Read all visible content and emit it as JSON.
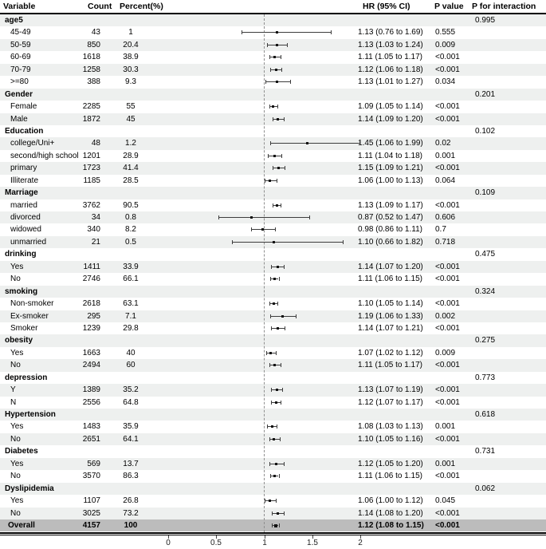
{
  "chart_data": {
    "type": "scatter",
    "subtype": "forest-plot",
    "columns": [
      "Variable",
      "Count",
      "Percent(%)",
      "HR (95% CI)",
      "P value",
      "P for interaction"
    ],
    "axis": {
      "tick_labels": [
        "0",
        "0.5",
        "1",
        "1.5",
        "2"
      ],
      "tick_values": [
        0,
        0.5,
        1,
        1.5,
        2
      ],
      "reference_line": 1,
      "range": [
        0,
        2.35
      ],
      "grid": false
    },
    "rows": [
      {
        "type": "group",
        "label": "age5",
        "p_interaction": "0.995"
      },
      {
        "type": "item",
        "label": "45-49",
        "count": "43",
        "percent": "1",
        "hr_ci": "1.13 (0.76 to 1.69)",
        "p": "0.555",
        "hr": 1.13,
        "lo": 0.76,
        "hi": 1.69
      },
      {
        "type": "item",
        "label": "50-59",
        "count": "850",
        "percent": "20.4",
        "hr_ci": "1.13 (1.03 to 1.24)",
        "p": "0.009",
        "hr": 1.13,
        "lo": 1.03,
        "hi": 1.24
      },
      {
        "type": "item",
        "label": "60-69",
        "count": "1618",
        "percent": "38.9",
        "hr_ci": "1.11 (1.05 to 1.17)",
        "p": "<0.001",
        "hr": 1.11,
        "lo": 1.05,
        "hi": 1.17
      },
      {
        "type": "item",
        "label": "70-79",
        "count": "1258",
        "percent": "30.3",
        "hr_ci": "1.12 (1.06 to 1.18)",
        "p": "<0.001",
        "hr": 1.12,
        "lo": 1.06,
        "hi": 1.18
      },
      {
        "type": "item",
        "label": ">=80",
        "count": "388",
        "percent": "9.3",
        "hr_ci": "1.13 (1.01 to 1.27)",
        "p": "0.034",
        "hr": 1.13,
        "lo": 1.01,
        "hi": 1.27
      },
      {
        "type": "group",
        "label": "Gender",
        "p_interaction": "0.201"
      },
      {
        "type": "item",
        "label": "Female",
        "count": "2285",
        "percent": "55",
        "hr_ci": "1.09 (1.05 to 1.14)",
        "p": "<0.001",
        "hr": 1.09,
        "lo": 1.05,
        "hi": 1.14
      },
      {
        "type": "item",
        "label": "Male",
        "count": "1872",
        "percent": "45",
        "hr_ci": "1.14 (1.09 to 1.20)",
        "p": "<0.001",
        "hr": 1.14,
        "lo": 1.09,
        "hi": 1.2
      },
      {
        "type": "group",
        "label": "Education",
        "p_interaction": "0.102"
      },
      {
        "type": "item",
        "label": "college/Uni+",
        "count": "48",
        "percent": "1.2",
        "hr_ci": "1.45 (1.06 to 1.99)",
        "p": "0.02",
        "hr": 1.45,
        "lo": 1.06,
        "hi": 1.99
      },
      {
        "type": "item",
        "label": "second/high school",
        "count": "1201",
        "percent": "28.9",
        "hr_ci": "1.11 (1.04 to 1.18)",
        "p": "0.001",
        "hr": 1.11,
        "lo": 1.04,
        "hi": 1.18
      },
      {
        "type": "item",
        "label": "primary",
        "count": "1723",
        "percent": "41.4",
        "hr_ci": "1.15 (1.09 to 1.21)",
        "p": "<0.001",
        "hr": 1.15,
        "lo": 1.09,
        "hi": 1.21
      },
      {
        "type": "item",
        "label": "Illiterate",
        "count": "1185",
        "percent": "28.5",
        "hr_ci": "1.06 (1.00 to 1.13)",
        "p": "0.064",
        "hr": 1.06,
        "lo": 1.0,
        "hi": 1.13
      },
      {
        "type": "group",
        "label": "Marriage",
        "p_interaction": "0.109"
      },
      {
        "type": "item",
        "label": "married",
        "count": "3762",
        "percent": "90.5",
        "hr_ci": "1.13 (1.09 to 1.17)",
        "p": "<0.001",
        "hr": 1.13,
        "lo": 1.09,
        "hi": 1.17
      },
      {
        "type": "item",
        "label": "divorced",
        "count": "34",
        "percent": "0.8",
        "hr_ci": "0.87 (0.52 to 1.47)",
        "p": "0.606",
        "hr": 0.87,
        "lo": 0.52,
        "hi": 1.47
      },
      {
        "type": "item",
        "label": "widowed",
        "count": "340",
        "percent": "8.2",
        "hr_ci": "0.98 (0.86 to 1.11)",
        "p": "0.7",
        "hr": 0.98,
        "lo": 0.86,
        "hi": 1.11
      },
      {
        "type": "item",
        "label": "unmarried",
        "count": "21",
        "percent": "0.5",
        "hr_ci": "1.10 (0.66 to 1.82)",
        "p": "0.718",
        "hr": 1.1,
        "lo": 0.66,
        "hi": 1.82
      },
      {
        "type": "group",
        "label": "drinking",
        "p_interaction": "0.475"
      },
      {
        "type": "item",
        "label": "Yes",
        "count": "1411",
        "percent": "33.9",
        "hr_ci": "1.14 (1.07 to 1.20)",
        "p": "<0.001",
        "hr": 1.14,
        "lo": 1.07,
        "hi": 1.2
      },
      {
        "type": "item",
        "label": "No",
        "count": "2746",
        "percent": "66.1",
        "hr_ci": "1.11 (1.06 to 1.15)",
        "p": "<0.001",
        "hr": 1.11,
        "lo": 1.06,
        "hi": 1.15
      },
      {
        "type": "group",
        "label": "smoking",
        "p_interaction": "0.324"
      },
      {
        "type": "item",
        "label": "Non-smoker",
        "count": "2618",
        "percent": "63.1",
        "hr_ci": "1.10 (1.05 to 1.14)",
        "p": "<0.001",
        "hr": 1.1,
        "lo": 1.05,
        "hi": 1.14
      },
      {
        "type": "item",
        "label": "Ex-smoker",
        "count": "295",
        "percent": "7.1",
        "hr_ci": "1.19 (1.06 to 1.33)",
        "p": "0.002",
        "hr": 1.19,
        "lo": 1.06,
        "hi": 1.33
      },
      {
        "type": "item",
        "label": "Smoker",
        "count": "1239",
        "percent": "29.8",
        "hr_ci": "1.14 (1.07 to 1.21)",
        "p": "<0.001",
        "hr": 1.14,
        "lo": 1.07,
        "hi": 1.21
      },
      {
        "type": "group",
        "label": "obesity",
        "p_interaction": "0.275"
      },
      {
        "type": "item",
        "label": "Yes",
        "count": "1663",
        "percent": "40",
        "hr_ci": "1.07 (1.02 to 1.12)",
        "p": "0.009",
        "hr": 1.07,
        "lo": 1.02,
        "hi": 1.12
      },
      {
        "type": "item",
        "label": "No",
        "count": "2494",
        "percent": "60",
        "hr_ci": "1.11 (1.05 to 1.17)",
        "p": "<0.001",
        "hr": 1.11,
        "lo": 1.05,
        "hi": 1.17
      },
      {
        "type": "group",
        "label": "depression",
        "p_interaction": "0.773"
      },
      {
        "type": "item",
        "label": "Y",
        "count": "1389",
        "percent": "35.2",
        "hr_ci": "1.13 (1.07 to 1.19)",
        "p": "<0.001",
        "hr": 1.13,
        "lo": 1.07,
        "hi": 1.19
      },
      {
        "type": "item",
        "label": "N",
        "count": "2556",
        "percent": "64.8",
        "hr_ci": "1.12 (1.07 to 1.17)",
        "p": "<0.001",
        "hr": 1.12,
        "lo": 1.07,
        "hi": 1.17
      },
      {
        "type": "group",
        "label": "Hypertension",
        "p_interaction": "0.618"
      },
      {
        "type": "item",
        "label": "Yes",
        "count": "1483",
        "percent": "35.9",
        "hr_ci": "1.08 (1.03 to 1.13)",
        "p": "0.001",
        "hr": 1.08,
        "lo": 1.03,
        "hi": 1.13
      },
      {
        "type": "item",
        "label": "No",
        "count": "2651",
        "percent": "64.1",
        "hr_ci": "1.10 (1.05 to 1.16)",
        "p": "<0.001",
        "hr": 1.1,
        "lo": 1.05,
        "hi": 1.16
      },
      {
        "type": "group",
        "label": "Diabetes",
        "p_interaction": "0.731"
      },
      {
        "type": "item",
        "label": "Yes",
        "count": "569",
        "percent": "13.7",
        "hr_ci": "1.12 (1.05 to 1.20)",
        "p": "0.001",
        "hr": 1.12,
        "lo": 1.05,
        "hi": 1.2
      },
      {
        "type": "item",
        "label": "No",
        "count": "3570",
        "percent": "86.3",
        "hr_ci": "1.11 (1.06 to 1.15)",
        "p": "<0.001",
        "hr": 1.11,
        "lo": 1.06,
        "hi": 1.15
      },
      {
        "type": "group",
        "label": "Dyslipidemia",
        "p_interaction": "0.062"
      },
      {
        "type": "item",
        "label": "Yes",
        "count": "1107",
        "percent": "26.8",
        "hr_ci": "1.06 (1.00 to 1.12)",
        "p": "0.045",
        "hr": 1.06,
        "lo": 1.0,
        "hi": 1.12
      },
      {
        "type": "item",
        "label": "No",
        "count": "3025",
        "percent": "73.2",
        "hr_ci": "1.14 (1.08 to 1.20)",
        "p": "<0.001",
        "hr": 1.14,
        "lo": 1.08,
        "hi": 1.2
      },
      {
        "type": "overall",
        "label": "Overall",
        "count": "4157",
        "percent": "100",
        "hr_ci": "1.12 (1.08 to 1.15)",
        "p": "<0.001",
        "hr": 1.12,
        "lo": 1.08,
        "hi": 1.15
      }
    ]
  },
  "colors": {
    "zebra_row": "#eef0ef",
    "overall_row": "#bcbcbc",
    "error_bar": "#3d3d3d",
    "reference_dash": "#8f8f8f",
    "rule": "#000000"
  }
}
